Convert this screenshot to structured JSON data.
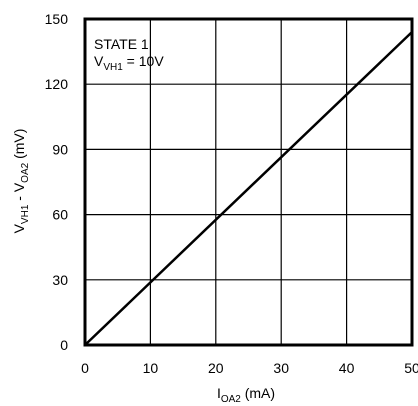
{
  "chart_data": {
    "type": "line",
    "title": "",
    "annotation": {
      "line1": "STATE 1",
      "line2_main": "V",
      "line2_sub": "VH1",
      "line2_rest": " = 10V"
    },
    "xlabel": {
      "main": "I",
      "sub": "OA2",
      "rest": " (mA)"
    },
    "ylabel": {
      "p1": "V",
      "s1": "VH1",
      "p2": " - V",
      "s2": "OA2",
      "p3": " (mV)"
    },
    "xlim": [
      0,
      50
    ],
    "ylim": [
      0,
      150
    ],
    "xticks": [
      0,
      10,
      20,
      30,
      40,
      50
    ],
    "yticks": [
      0,
      30,
      60,
      90,
      120,
      150
    ],
    "grid": true,
    "series": [
      {
        "x": [
          0,
          50
        ],
        "y": [
          0,
          144
        ],
        "color": "#000000"
      }
    ]
  }
}
